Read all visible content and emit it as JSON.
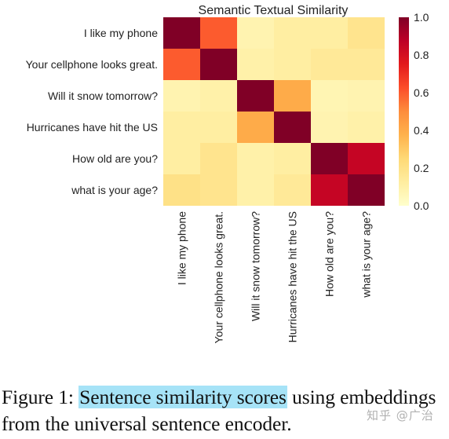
{
  "chart_data": {
    "type": "heatmap",
    "title": "Semantic Textual Similarity",
    "rows": [
      "I like my phone",
      "Your cellphone looks great.",
      "Will it snow tomorrow?",
      "Hurricanes have hit the US",
      "How old are you?",
      "what is your age?"
    ],
    "columns": [
      "I like my phone",
      "Your cellphone looks great.",
      "Will it snow tomorrow?",
      "Hurricanes have hit the US",
      "How old are you?",
      "what is your age?"
    ],
    "values": [
      [
        1.0,
        0.6,
        0.08,
        0.12,
        0.12,
        0.18
      ],
      [
        0.6,
        1.0,
        0.1,
        0.12,
        0.15,
        0.15
      ],
      [
        0.08,
        0.1,
        1.0,
        0.4,
        0.07,
        0.08
      ],
      [
        0.12,
        0.12,
        0.4,
        1.0,
        0.08,
        0.1
      ],
      [
        0.12,
        0.18,
        0.1,
        0.12,
        1.0,
        0.85
      ],
      [
        0.2,
        0.18,
        0.1,
        0.15,
        0.85,
        1.0
      ]
    ],
    "colorbar": {
      "min": 0.0,
      "max": 1.0,
      "ticks": [
        "1.0",
        "0.8",
        "0.6",
        "0.4",
        "0.2",
        "0.0"
      ]
    },
    "colormap": "YlOrRd"
  },
  "caption": {
    "prefix": "Figure 1: ",
    "highlight": "Sentence similarity scores",
    "rest": " using embeddings from the universal sentence encoder.",
    "highlight_color": "#a6e3f7"
  },
  "watermark": "知乎 @广治"
}
